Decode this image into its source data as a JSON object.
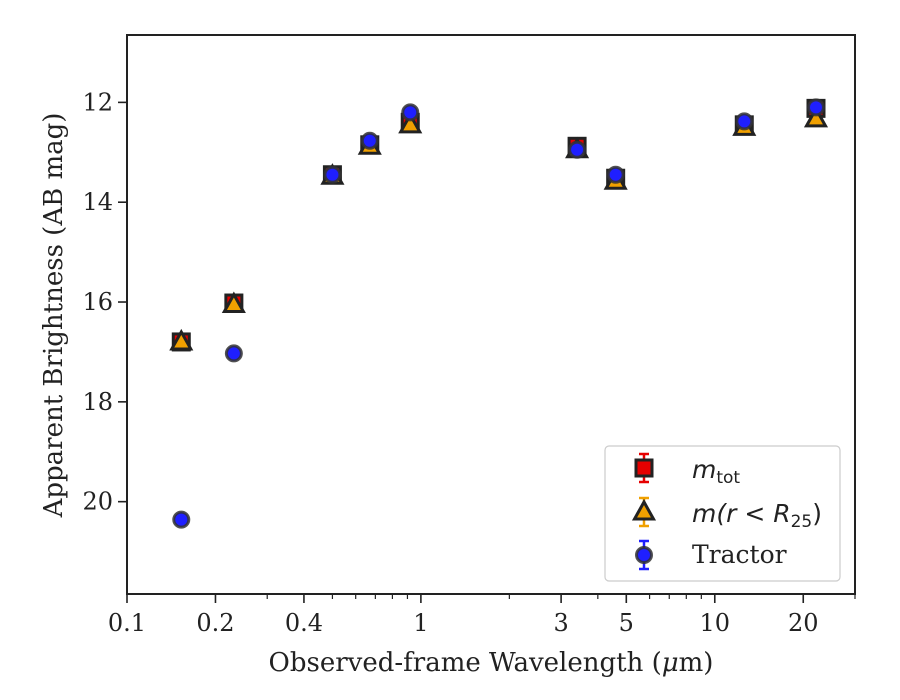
{
  "chart_data": {
    "type": "scatter",
    "xlabel": "Observed-frame Wavelength (",
    "xlabel_mu": "μ",
    "xlabel_suffix": "m)",
    "ylabel": "Apparent Brightness (AB mag)",
    "xscale": "log",
    "xlim": [
      0.1,
      30
    ],
    "ylim": [
      21.85,
      10.65
    ],
    "y_inverted": true,
    "grid": false,
    "legend_position": "lower-right",
    "xticks": [
      {
        "value": 0.1,
        "label": "0.1"
      },
      {
        "value": 0.2,
        "label": "0.2"
      },
      {
        "value": 0.4,
        "label": "0.4"
      },
      {
        "value": 1,
        "label": "1"
      },
      {
        "value": 3,
        "label": "3"
      },
      {
        "value": 5,
        "label": "5"
      },
      {
        "value": 10,
        "label": "10"
      },
      {
        "value": 20,
        "label": "20"
      }
    ],
    "yticks": [
      {
        "value": 12,
        "label": "12"
      },
      {
        "value": 14,
        "label": "14"
      },
      {
        "value": 16,
        "label": "16"
      },
      {
        "value": 18,
        "label": "18"
      },
      {
        "value": 20,
        "label": "20"
      }
    ],
    "series": [
      {
        "name": "m_tot",
        "legend_main": "m",
        "legend_sub": "tot",
        "marker": "square",
        "color": "#e60000",
        "points": [
          {
            "x": 0.153,
            "y": 16.8
          },
          {
            "x": 0.231,
            "y": 16.02
          },
          {
            "x": 0.5,
            "y": 13.45
          },
          {
            "x": 0.67,
            "y": 12.85
          },
          {
            "x": 0.92,
            "y": 12.4
          },
          {
            "x": 3.4,
            "y": 12.88
          },
          {
            "x": 4.6,
            "y": 13.52
          },
          {
            "x": 12.6,
            "y": 12.45
          },
          {
            "x": 22.1,
            "y": 12.12
          }
        ]
      },
      {
        "name": "m(r<R_25)",
        "legend_main": "m(r < R",
        "legend_sub": "25",
        "legend_tail": ")",
        "marker": "triangle",
        "color": "#f0a000",
        "points": [
          {
            "x": 0.153,
            "y": 16.8
          },
          {
            "x": 0.231,
            "y": 16.05
          },
          {
            "x": 0.5,
            "y": 13.48
          },
          {
            "x": 0.67,
            "y": 12.88
          },
          {
            "x": 0.92,
            "y": 12.45
          },
          {
            "x": 3.4,
            "y": 12.95
          },
          {
            "x": 4.6,
            "y": 13.58
          },
          {
            "x": 12.6,
            "y": 12.5
          },
          {
            "x": 22.1,
            "y": 12.33
          }
        ]
      },
      {
        "name": "Tractor",
        "legend_main": "Tractor",
        "marker": "circle",
        "color": "#1f1fff",
        "points": [
          {
            "x": 0.153,
            "y": 20.36
          },
          {
            "x": 0.231,
            "y": 17.03
          },
          {
            "x": 0.5,
            "y": 13.45
          },
          {
            "x": 0.67,
            "y": 12.77
          },
          {
            "x": 0.92,
            "y": 12.2
          },
          {
            "x": 3.4,
            "y": 12.95
          },
          {
            "x": 4.6,
            "y": 13.45
          },
          {
            "x": 12.6,
            "y": 12.38
          },
          {
            "x": 22.1,
            "y": 12.1
          }
        ]
      }
    ]
  }
}
